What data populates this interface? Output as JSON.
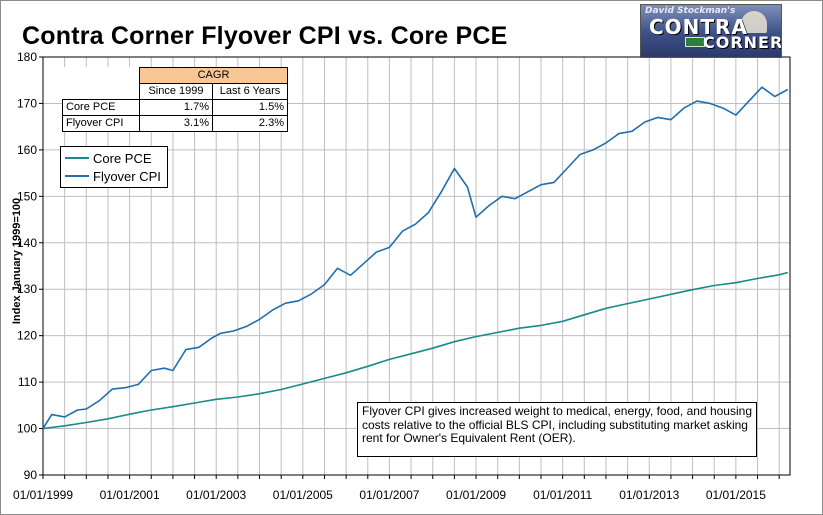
{
  "chart_data": {
    "type": "line",
    "title": "Contra Corner Flyover CPI vs. Core PCE",
    "ylabel": "Index January 1999=100",
    "xlabel": "",
    "ylim": [
      90,
      180
    ],
    "yticks": [
      "90",
      "100",
      "110",
      "120",
      "130",
      "140",
      "150",
      "160",
      "170",
      "180"
    ],
    "xlim": [
      "1999-01",
      "2016-03"
    ],
    "xticks": [
      "01/01/1999",
      "01/01/2001",
      "01/01/2003",
      "01/01/2005",
      "01/01/2007",
      "01/01/2009",
      "01/01/2011",
      "01/01/2013",
      "01/01/2015"
    ],
    "grid": true,
    "legend_position": "upper-left",
    "series": [
      {
        "name": "Core PCE",
        "color": "#1a8a8a",
        "x": [
          1999.0,
          1999.5,
          2000.0,
          2000.5,
          2001.0,
          2001.5,
          2002.0,
          2002.5,
          2003.0,
          2003.5,
          2004.0,
          2004.5,
          2005.0,
          2005.5,
          2006.0,
          2006.5,
          2007.0,
          2007.5,
          2008.0,
          2008.5,
          2009.0,
          2009.5,
          2010.0,
          2010.5,
          2011.0,
          2011.5,
          2012.0,
          2012.5,
          2013.0,
          2013.5,
          2014.0,
          2014.5,
          2015.0,
          2015.5,
          2016.0,
          2016.2
        ],
        "values": [
          100.0,
          100.6,
          101.3,
          102.1,
          103.1,
          104.0,
          104.7,
          105.5,
          106.3,
          106.8,
          107.5,
          108.4,
          109.6,
          110.8,
          112.0,
          113.4,
          114.9,
          116.1,
          117.3,
          118.7,
          119.8,
          120.7,
          121.6,
          122.2,
          123.1,
          124.5,
          125.9,
          126.9,
          127.9,
          128.9,
          129.9,
          130.8,
          131.4,
          132.3,
          133.1,
          133.6
        ]
      },
      {
        "name": "Flyover CPI",
        "color": "#1f6fb0",
        "x": [
          1999.0,
          1999.2,
          1999.5,
          1999.8,
          2000.0,
          2000.3,
          2000.6,
          2000.9,
          2001.2,
          2001.5,
          2001.8,
          2002.0,
          2002.3,
          2002.6,
          2002.9,
          2003.1,
          2003.4,
          2003.7,
          2004.0,
          2004.3,
          2004.6,
          2004.9,
          2005.2,
          2005.5,
          2005.8,
          2006.1,
          2006.4,
          2006.7,
          2007.0,
          2007.3,
          2007.6,
          2007.9,
          2008.2,
          2008.5,
          2008.8,
          2009.0,
          2009.3,
          2009.6,
          2009.9,
          2010.2,
          2010.5,
          2010.8,
          2011.1,
          2011.4,
          2011.7,
          2012.0,
          2012.3,
          2012.6,
          2012.9,
          2013.2,
          2013.5,
          2013.8,
          2014.1,
          2014.4,
          2014.7,
          2015.0,
          2015.3,
          2015.6,
          2015.9,
          2016.2
        ],
        "values": [
          100.0,
          103.0,
          102.5,
          104.0,
          104.2,
          106.0,
          108.5,
          108.8,
          109.5,
          112.5,
          113.0,
          112.5,
          117.0,
          117.5,
          119.5,
          120.5,
          121.0,
          122.0,
          123.5,
          125.5,
          127.0,
          127.5,
          129.0,
          131.0,
          134.5,
          133.0,
          135.5,
          138.0,
          139.0,
          142.5,
          144.0,
          146.5,
          151.0,
          156.0,
          152.0,
          145.5,
          148.0,
          150.0,
          149.5,
          151.0,
          152.5,
          153.0,
          156.0,
          159.0,
          160.0,
          161.5,
          163.5,
          164.0,
          166.0,
          167.0,
          166.5,
          169.0,
          170.5,
          170.0,
          169.0,
          167.5,
          170.5,
          173.5,
          171.5,
          173.0
        ]
      }
    ],
    "annotation": "Flyover CPI gives increased weight to medical, energy, food, and housing costs relative to the official BLS CPI, including substituting market asking rent for Owner's Equivalent Rent (OER)."
  },
  "table": {
    "header": "CAGR",
    "columns": [
      "Since 1999",
      "Last 6 Years"
    ],
    "rows": [
      {
        "label": "Core PCE",
        "since_1999": "1.7%",
        "last_6": "1.5%"
      },
      {
        "label": "Flyover CPI",
        "since_1999": "3.1%",
        "last_6": "2.3%"
      }
    ]
  },
  "logo": {
    "byline": "David Stockman's",
    "word1": "CONTRA",
    "word2": "CORNER"
  },
  "colors": {
    "core_pce": "#1a8a8a",
    "flyover_cpi": "#1f6fb0",
    "table_header": "#f7c896",
    "grid": "#bfbfbf"
  }
}
